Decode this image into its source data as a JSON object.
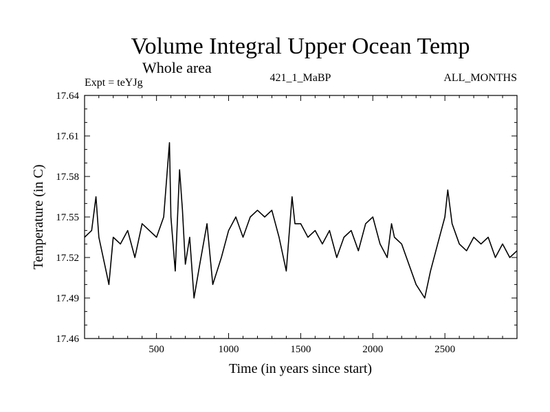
{
  "chart_data": {
    "type": "line",
    "title": "Volume Integral Upper Ocean Temp",
    "subtitle": "Whole area",
    "expt_label": "Expt = teYJg",
    "run_label": "421_1_MaBP",
    "months_label": "ALL_MONTHS",
    "xlabel": "Time (in years since start)",
    "ylabel": "Temperature (in C)",
    "xlim": [
      1,
      3000
    ],
    "ylim": [
      17.46,
      17.64
    ],
    "x_ticks": [
      500,
      1000,
      1500,
      2000,
      2500
    ],
    "x_tick_labels": [
      "500",
      "1000",
      "1500",
      "2000",
      "2500"
    ],
    "y_ticks": [
      17.46,
      17.49,
      17.52,
      17.55,
      17.58,
      17.61,
      17.64
    ],
    "y_tick_labels": [
      "17.46",
      "17.49",
      "17.52",
      "17.55",
      "17.58",
      "17.61",
      "17.64"
    ],
    "line_color": "#000000",
    "series": [
      {
        "name": "Volume Integral Upper Ocean Temp",
        "x": [
          1,
          50,
          80,
          100,
          150,
          170,
          200,
          250,
          300,
          350,
          400,
          450,
          500,
          550,
          575,
          590,
          600,
          630,
          660,
          680,
          700,
          730,
          760,
          800,
          850,
          890,
          950,
          1000,
          1050,
          1100,
          1150,
          1200,
          1250,
          1300,
          1350,
          1400,
          1440,
          1460,
          1500,
          1550,
          1600,
          1650,
          1700,
          1750,
          1800,
          1850,
          1900,
          1950,
          2000,
          2050,
          2100,
          2130,
          2150,
          2200,
          2250,
          2300,
          2360,
          2400,
          2450,
          2500,
          2520,
          2550,
          2600,
          2650,
          2700,
          2750,
          2800,
          2850,
          2900,
          2950,
          3000
        ],
        "y": [
          17.535,
          17.54,
          17.565,
          17.535,
          17.51,
          17.5,
          17.535,
          17.53,
          17.54,
          17.52,
          17.545,
          17.54,
          17.535,
          17.55,
          17.585,
          17.605,
          17.55,
          17.51,
          17.585,
          17.555,
          17.515,
          17.535,
          17.49,
          17.515,
          17.545,
          17.5,
          17.52,
          17.54,
          17.55,
          17.535,
          17.55,
          17.555,
          17.55,
          17.555,
          17.535,
          17.51,
          17.565,
          17.545,
          17.545,
          17.535,
          17.54,
          17.53,
          17.54,
          17.52,
          17.535,
          17.54,
          17.525,
          17.545,
          17.55,
          17.53,
          17.52,
          17.545,
          17.535,
          17.53,
          17.515,
          17.5,
          17.49,
          17.51,
          17.53,
          17.55,
          17.57,
          17.545,
          17.53,
          17.525,
          17.535,
          17.53,
          17.535,
          17.52,
          17.53,
          17.52,
          17.525
        ]
      }
    ]
  }
}
